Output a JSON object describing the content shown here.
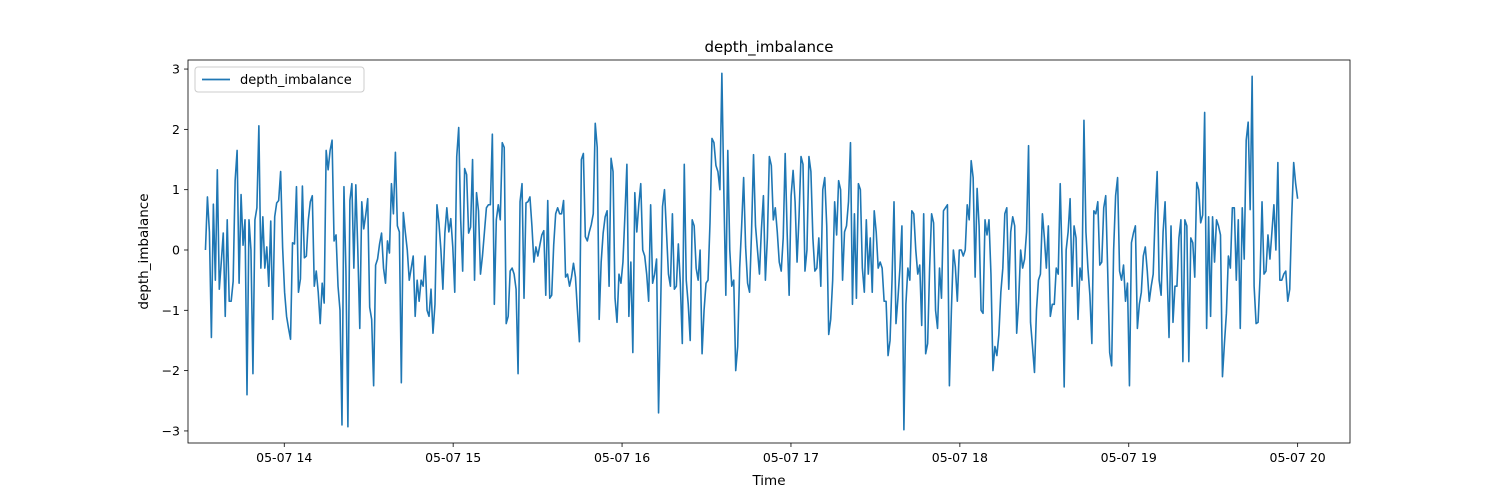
{
  "chart_data": {
    "type": "line",
    "title": "depth_imbalance",
    "xlabel": "Time",
    "ylabel": "depth_imbalance",
    "legend": {
      "placement": "top-left",
      "entries": [
        "depth_imbalance"
      ]
    },
    "grid": false,
    "ylim": [
      -3.2,
      3.15
    ],
    "yticks": [
      -3,
      -2,
      -1,
      0,
      1,
      2,
      3
    ],
    "xlim_hours": [
      13.43,
      20.31
    ],
    "xticks": [
      {
        "label": "05-07 14",
        "hour": 14
      },
      {
        "label": "05-07 15",
        "hour": 15
      },
      {
        "label": "05-07 16",
        "hour": 16
      },
      {
        "label": "05-07 17",
        "hour": 17
      },
      {
        "label": "05-07 18",
        "hour": 18
      },
      {
        "label": "05-07 19",
        "hour": 19
      },
      {
        "label": "05-07 20",
        "hour": 20
      }
    ],
    "color": "#1f77b4",
    "series": [
      {
        "name": "depth_imbalance",
        "start": "05-07 13:32",
        "end": "05-07 20:00",
        "values": [
          0.0,
          0.88,
          0.3,
          -1.45,
          0.76,
          -0.5,
          1.33,
          -0.65,
          -0.2,
          0.28,
          -1.1,
          0.5,
          -0.85,
          -0.85,
          -0.52,
          1.15,
          1.65,
          -0.55,
          0.92,
          0.08,
          0.5,
          -2.4,
          0.5,
          0.0,
          -2.05,
          0.5,
          0.7,
          2.06,
          -0.3,
          0.55,
          -0.3,
          0.05,
          -0.6,
          0.48,
          -1.15,
          0.55,
          0.78,
          0.82,
          1.3,
          0.04,
          -0.7,
          -1.1,
          -1.3,
          -1.48,
          0.12,
          0.1,
          1.05,
          -0.7,
          -0.48,
          1.06,
          -0.13,
          -0.1,
          0.5,
          0.8,
          0.9,
          -0.6,
          -0.35,
          -0.7,
          -1.22,
          -0.55,
          -0.88,
          1.65,
          1.33,
          1.65,
          1.82,
          0.15,
          0.25,
          -0.6,
          -1.0,
          -2.9,
          1.05,
          -0.35,
          -2.93,
          0.82,
          1.1,
          -0.3,
          1.08,
          0.0,
          -1.3,
          0.8,
          0.35,
          0.58,
          0.85,
          -0.95,
          -1.15,
          -2.25,
          -0.25,
          -0.15,
          0.1,
          0.28,
          -0.3,
          -0.55,
          0.15,
          -0.05,
          1.1,
          0.6,
          1.62,
          0.4,
          0.3,
          -2.2,
          0.62,
          0.3,
          0.0,
          -0.5,
          -0.3,
          -0.1,
          -1.1,
          -0.5,
          -0.85,
          -0.5,
          -0.6,
          -0.1,
          -1.0,
          -1.1,
          -0.65,
          -1.38,
          -0.9,
          0.75,
          0.45,
          0.0,
          -0.65,
          0.28,
          0.7,
          0.3,
          0.52,
          0.05,
          -0.7,
          1.55,
          2.03,
          0.5,
          -0.35,
          1.35,
          1.25,
          0.28,
          0.38,
          1.5,
          -0.5,
          0.95,
          0.65,
          -0.4,
          -0.1,
          0.3,
          0.7,
          0.75,
          0.75,
          1.92,
          -0.9,
          0.5,
          0.75,
          0.5,
          1.78,
          1.7,
          -1.22,
          -1.1,
          -0.35,
          -0.3,
          -0.4,
          -0.65,
          -2.05,
          0.8,
          1.1,
          -0.8,
          0.78,
          0.8,
          0.88,
          0.4,
          -0.2,
          0.05,
          -0.1,
          0.08,
          0.25,
          0.32,
          -0.75,
          0.82,
          -0.8,
          -0.75,
          0.08,
          0.6,
          0.7,
          0.6,
          0.6,
          0.82,
          -0.45,
          -0.4,
          -0.6,
          -0.45,
          -0.22,
          -0.45,
          -1.0,
          -1.52,
          1.5,
          1.6,
          0.22,
          0.15,
          0.3,
          0.42,
          0.6,
          2.1,
          1.7,
          -1.15,
          -0.2,
          0.28,
          0.55,
          0.65,
          -0.6,
          1.52,
          1.3,
          -0.8,
          -1.2,
          -0.4,
          -0.55,
          -0.2,
          0.58,
          1.42,
          -1.1,
          -0.2,
          -1.7,
          0.95,
          0.3,
          0.75,
          1.1,
          0.0,
          -0.1,
          -0.4,
          -0.85,
          0.75,
          -0.55,
          -0.4,
          -0.15,
          -2.7,
          -1.05,
          0.72,
          1.0,
          0.3,
          -0.4,
          -0.6,
          0.6,
          -0.65,
          -0.6,
          0.1,
          -0.55,
          -1.55,
          1.42,
          -0.5,
          -0.9,
          -1.5,
          0.5,
          0.4,
          -0.3,
          -0.5,
          0.0,
          -1.72,
          -1.0,
          -0.55,
          -0.5,
          0.45,
          1.85,
          1.78,
          1.4,
          1.3,
          1.0,
          2.93,
          0.95,
          -0.75,
          1.65,
          0.0,
          -0.6,
          -0.5,
          -2.0,
          -1.6,
          -0.3,
          0.4,
          1.2,
          0.05,
          -0.55,
          -0.7,
          0.3,
          1.58,
          0.4,
          0.0,
          -0.4,
          0.35,
          0.9,
          -0.5,
          0.2,
          1.55,
          1.4,
          0.5,
          0.7,
          0.3,
          -0.2,
          -0.35,
          0.2,
          1.6,
          0.28,
          -0.75,
          0.9,
          1.32,
          0.8,
          -0.2,
          0.55,
          1.55,
          1.42,
          -0.35,
          0.0,
          1.55,
          1.3,
          0.2,
          -0.35,
          -0.3,
          0.2,
          -0.6,
          1.0,
          1.2,
          0.4,
          -1.4,
          -1.15,
          -0.5,
          0.8,
          0.25,
          1.15,
          1.0,
          -0.5,
          0.3,
          0.4,
          0.8,
          1.78,
          -0.9,
          0.6,
          -0.8,
          1.1,
          1.0,
          -0.3,
          -0.7,
          0.5,
          -0.4,
          0.2,
          -0.7,
          0.65,
          0.3,
          -0.3,
          -0.2,
          -0.3,
          -0.85,
          -0.85,
          -1.75,
          -1.5,
          -0.5,
          0.8,
          -1.22,
          -0.8,
          -0.3,
          0.4,
          -2.98,
          -0.9,
          -0.3,
          -0.5,
          0.65,
          0.6,
          0.0,
          -0.4,
          -0.25,
          -1.25,
          0.6,
          -1.72,
          -1.55,
          -0.3,
          0.6,
          0.45,
          -1.0,
          -1.3,
          -0.3,
          -0.8,
          0.65,
          0.7,
          0.75,
          -2.25,
          -1.0,
          0.0,
          -0.28,
          -0.85,
          0.0,
          0.0,
          -0.1,
          0.0,
          0.75,
          0.5,
          1.48,
          1.2,
          -0.45,
          1.02,
          0.4,
          -1.0,
          -1.05,
          0.5,
          0.25,
          0.5,
          -0.4,
          -2.0,
          -1.6,
          -1.75,
          -1.4,
          -0.7,
          -0.3,
          0.6,
          0.7,
          -0.65,
          0.3,
          0.55,
          0.4,
          -1.38,
          -0.85,
          0.0,
          -0.3,
          -0.15,
          0.3,
          1.73,
          -1.2,
          -1.6,
          -2.03,
          -1.0,
          -0.5,
          -0.4,
          0.6,
          0.2,
          -0.3,
          0.4,
          -1.1,
          -0.9,
          -0.9,
          -0.3,
          -0.4,
          1.1,
          -0.25,
          -2.27,
          0.0,
          0.3,
          0.85,
          -0.6,
          0.4,
          0.2,
          -1.15,
          -0.3,
          -0.5,
          2.15,
          0.3,
          -0.3,
          -0.75,
          -1.55,
          0.65,
          0.6,
          0.8,
          -0.25,
          -0.2,
          0.7,
          0.9,
          -0.35,
          -1.7,
          -1.92,
          0.0,
          0.9,
          1.2,
          -0.35,
          -0.5,
          -0.25,
          -0.85,
          -0.55,
          -2.25,
          0.12,
          0.28,
          0.4,
          -1.3,
          -0.9,
          -0.7,
          -0.1,
          0.05,
          -0.35,
          -0.85,
          -0.6,
          -0.4,
          0.6,
          1.3,
          -0.5,
          -0.75,
          0.3,
          0.8,
          -0.35,
          -1.45,
          0.4,
          -1.2,
          -0.6,
          -0.6,
          0.2,
          0.5,
          -1.85,
          0.5,
          0.4,
          -1.85,
          0.2,
          0.12,
          -0.45,
          1.12,
          1.0,
          0.45,
          0.58,
          2.28,
          -1.3,
          0.55,
          -1.1,
          0.55,
          -0.2,
          0.5,
          0.4,
          0.25,
          -2.1,
          -1.55,
          -1.05,
          -0.1,
          -0.3,
          0.7,
          0.7,
          -0.5,
          0.5,
          -1.3,
          0.7,
          -0.15,
          1.82,
          2.12,
          0.67,
          2.88,
          -0.6,
          -1.22,
          -1.2,
          -0.45,
          0.8,
          -0.4,
          -0.35,
          0.25,
          -0.15,
          0.3,
          0.75,
          0.0,
          1.45,
          -0.5,
          -0.5,
          -0.4,
          -0.35,
          -0.85,
          -0.65,
          0.55,
          1.45,
          1.1,
          0.85
        ]
      }
    ]
  }
}
